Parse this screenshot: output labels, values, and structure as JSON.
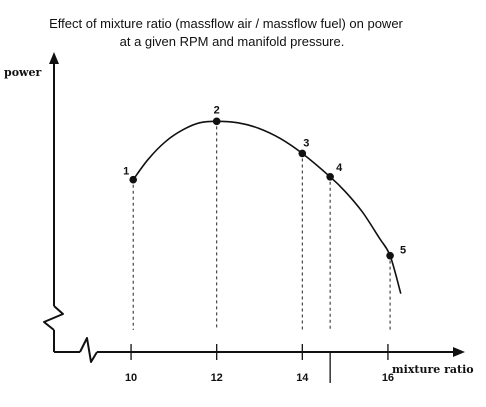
{
  "chart_data": {
    "type": "line",
    "title_lines": [
      "Effect of mixture ratio (massflow air / massflow fuel) on power",
      "at a given RPM and manifold pressure."
    ],
    "xlabel": "mixture ratio",
    "ylabel": "power",
    "x_ticks": [
      10,
      12,
      14,
      16
    ],
    "xlim": [
      8.2,
      17.8
    ],
    "ylim": [
      0,
      100
    ],
    "grid": false,
    "marked_points": [
      {
        "label": "1",
        "x": 10.05,
        "y": 59
      },
      {
        "label": "2",
        "x": 12.0,
        "y": 79
      },
      {
        "label": "3",
        "x": 14.0,
        "y": 68
      },
      {
        "label": "4",
        "x": 14.65,
        "y": 60
      },
      {
        "label": "5",
        "x": 16.05,
        "y": 33
      }
    ],
    "curve": {
      "x": [
        10.05,
        10.4,
        10.8,
        11.2,
        11.6,
        12.0,
        12.5,
        13.0,
        13.5,
        14.0,
        14.65,
        15.0,
        15.4,
        15.8,
        16.05,
        16.3
      ],
      "y": [
        59,
        66,
        72,
        76,
        78.5,
        79,
        78.5,
        76.5,
        73,
        68,
        60,
        55,
        48,
        39,
        33,
        20
      ]
    }
  }
}
